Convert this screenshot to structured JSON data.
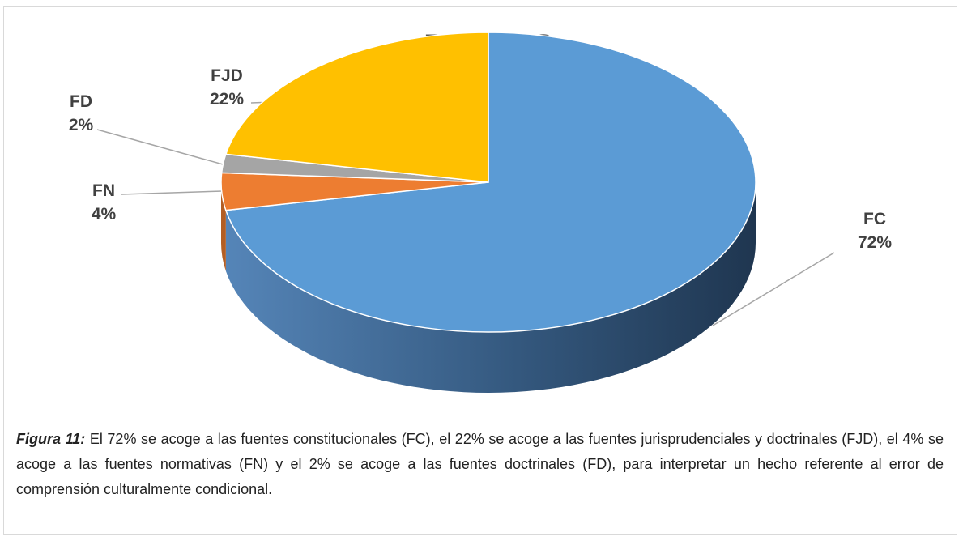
{
  "chart_data": {
    "type": "pie",
    "title": "FUENTES",
    "categories": [
      "FC",
      "FN",
      "FD",
      "FJD"
    ],
    "values": [
      72,
      4,
      2,
      22
    ],
    "value_labels": [
      "72%",
      "4%",
      "2%",
      "22%"
    ],
    "colors": [
      "#5b9bd5",
      "#ed7d31",
      "#a5a5a5",
      "#ffc000"
    ]
  },
  "caption": {
    "label": "Figura 11:",
    "text": "El 72% se acoge a las fuentes constitucionales (FC), el 22% se acoge a las fuentes jurisprudenciales y doctrinales (FJD), el 4% se acoge a las fuentes normativas (FN) y el 2% se acoge a las fuentes doctrinales (FD), para interpretar un hecho referente al error de comprensión culturalmente condicional."
  }
}
